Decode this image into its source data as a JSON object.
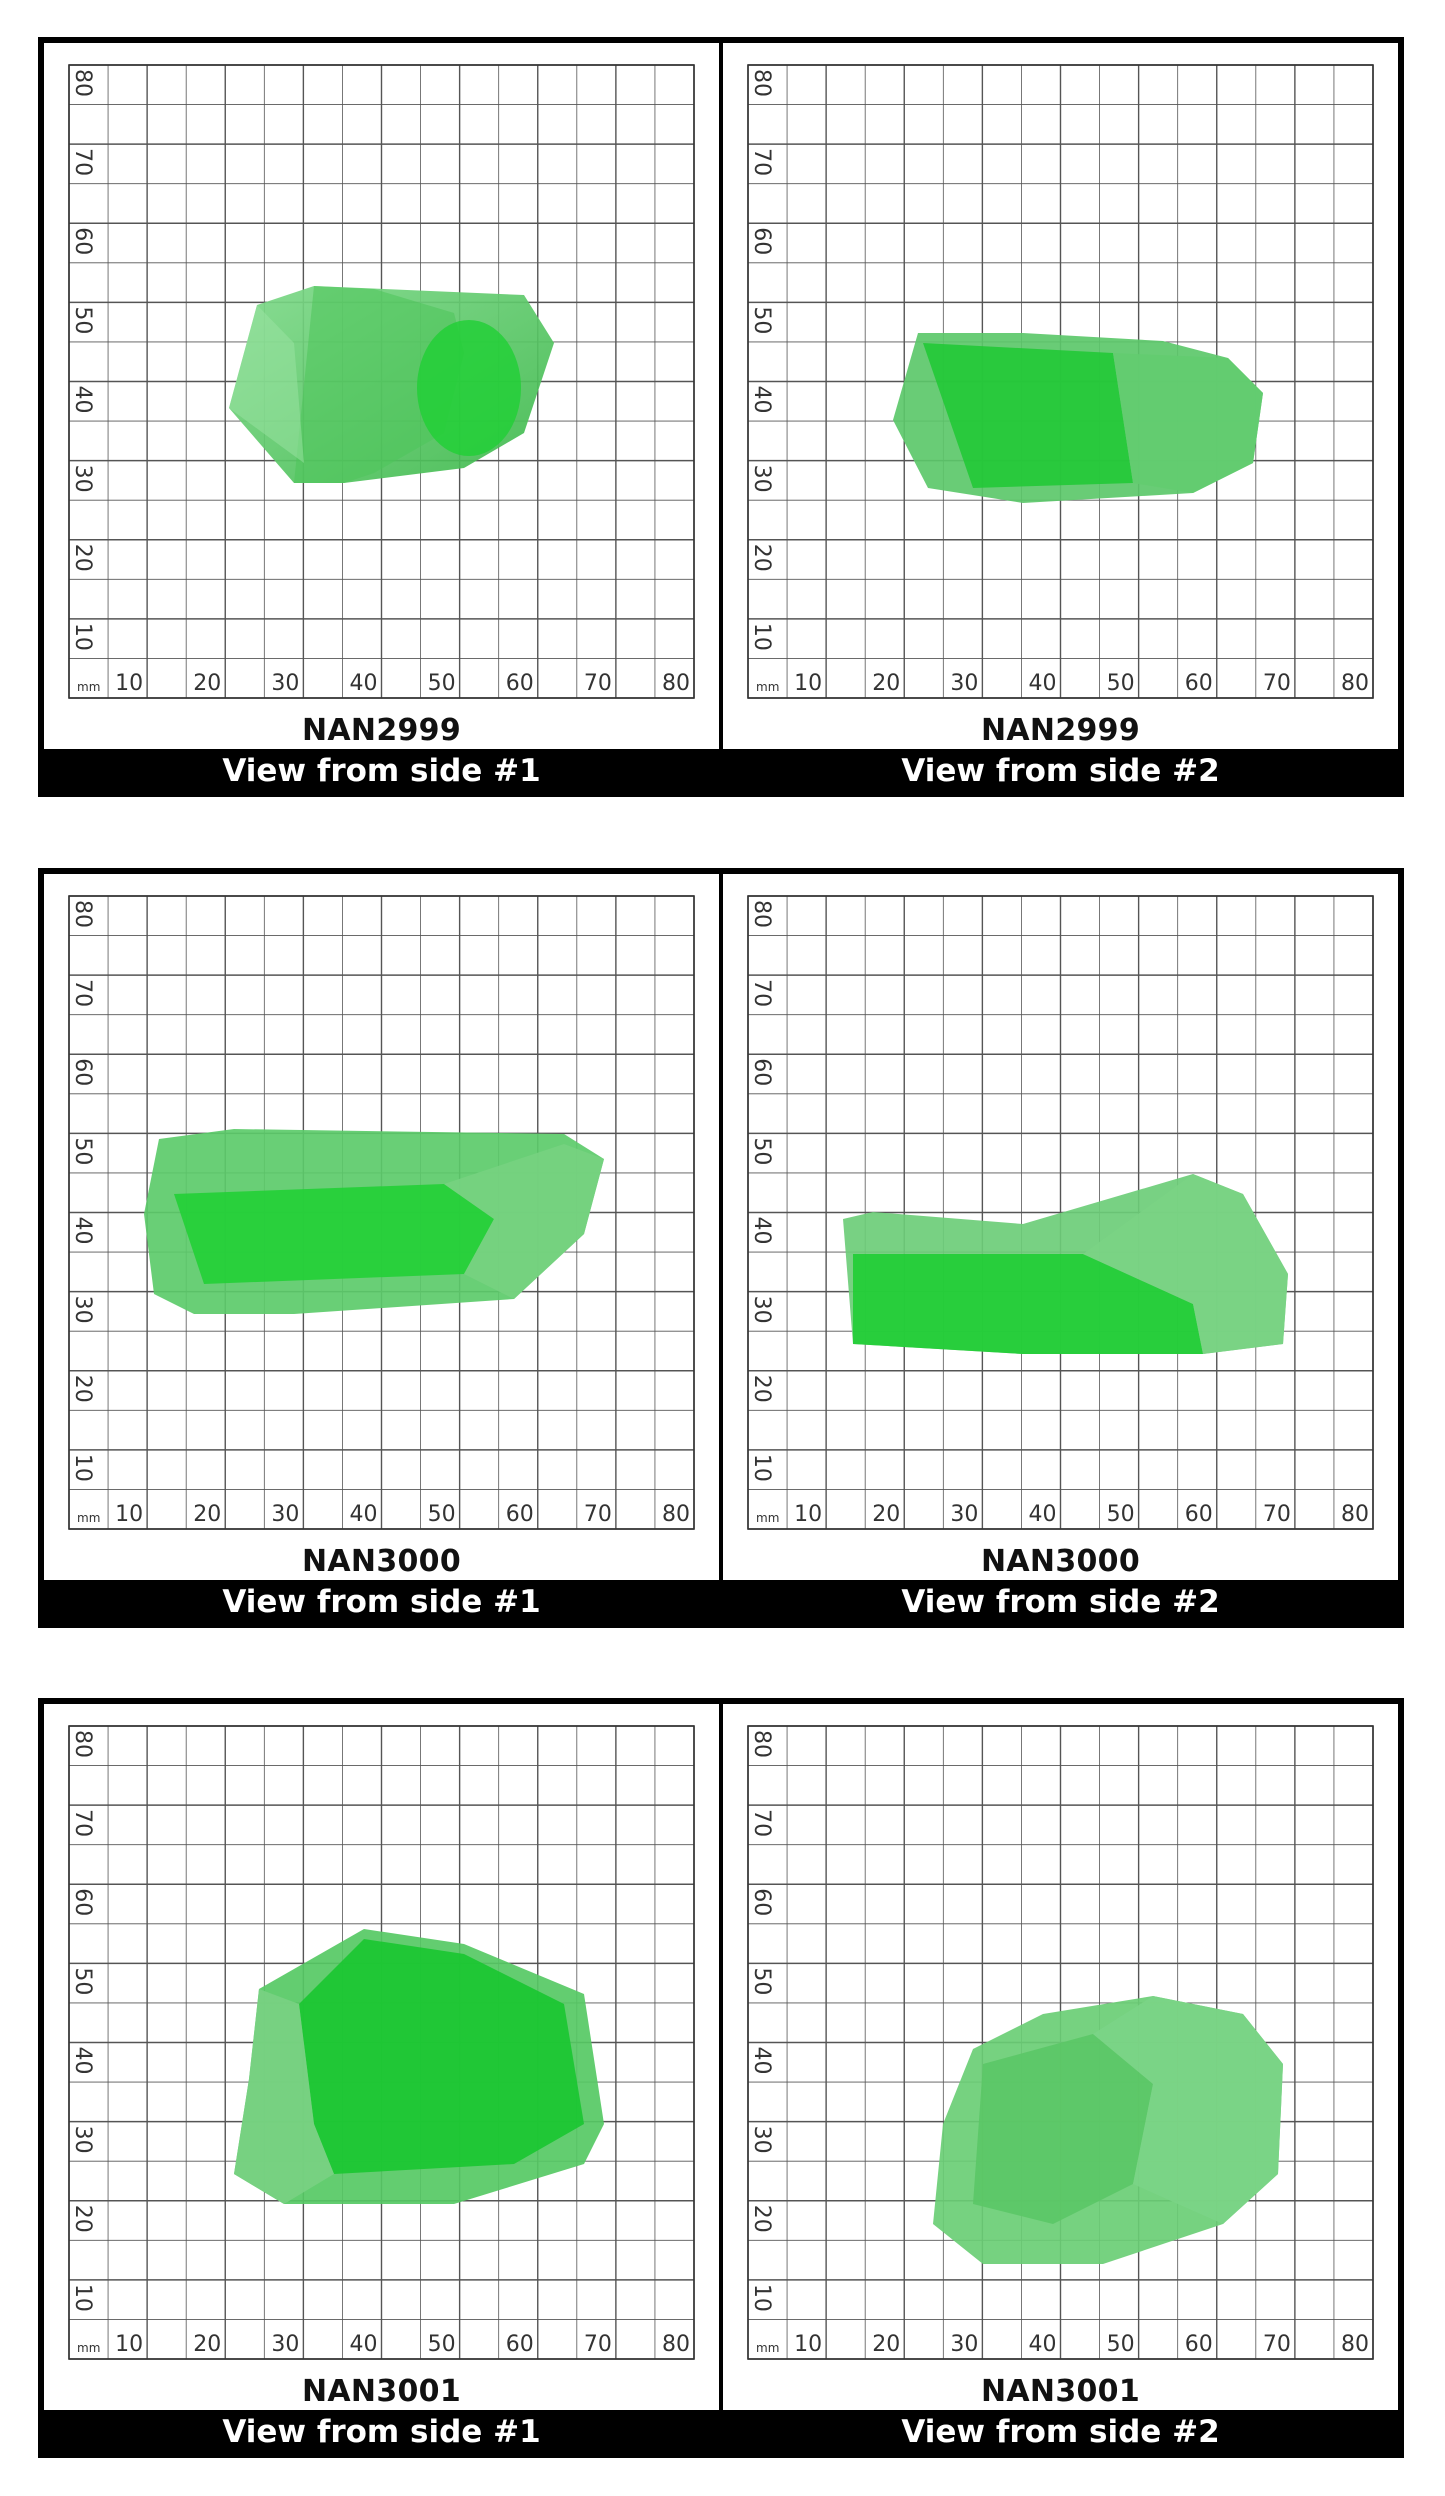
{
  "colors": {
    "gem_green": "#27c23a",
    "grid_line": "#555555",
    "frame": "#000000"
  },
  "axis": {
    "unit_label": "mm",
    "ticks": [
      "10",
      "20",
      "30",
      "40",
      "50",
      "60",
      "70",
      "80"
    ]
  },
  "rows": [
    {
      "code": "NAN2999",
      "views": [
        {
          "caption": "View from side #1"
        },
        {
          "caption": "View from side #2"
        }
      ]
    },
    {
      "code": "NAN3000",
      "views": [
        {
          "caption": "View from side #1"
        },
        {
          "caption": "View from side #2"
        }
      ]
    },
    {
      "code": "NAN3001",
      "views": [
        {
          "caption": "View from side #1"
        },
        {
          "caption": "View from side #2"
        }
      ]
    }
  ]
}
